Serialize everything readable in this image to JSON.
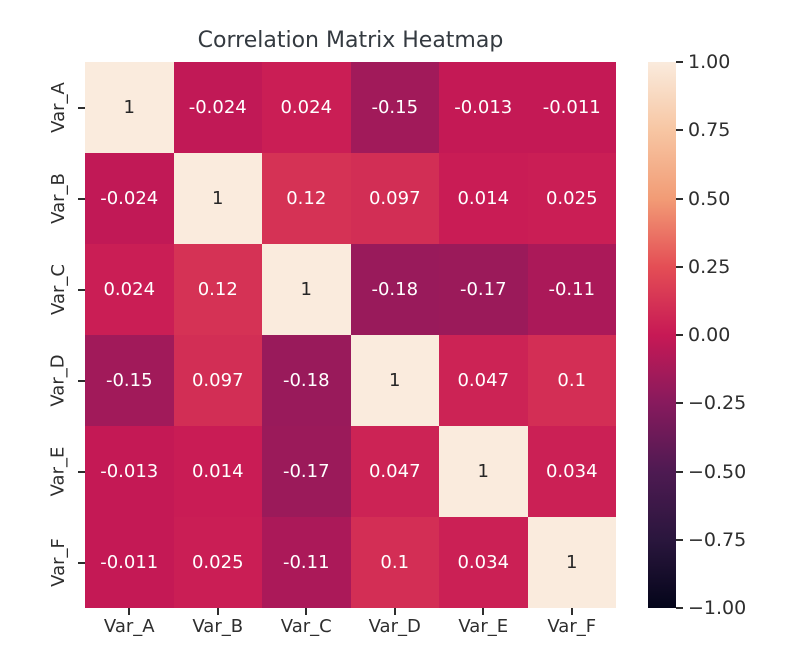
{
  "title": "Correlation Matrix Heatmap",
  "chart_data": {
    "type": "heatmap",
    "categories": [
      "Var_A",
      "Var_B",
      "Var_C",
      "Var_D",
      "Var_E",
      "Var_F"
    ],
    "matrix": [
      [
        1,
        -0.024,
        0.024,
        -0.15,
        -0.013,
        -0.011
      ],
      [
        -0.024,
        1,
        0.12,
        0.097,
        0.014,
        0.025
      ],
      [
        0.024,
        0.12,
        1,
        -0.18,
        -0.17,
        -0.11
      ],
      [
        -0.15,
        0.097,
        -0.18,
        1,
        0.047,
        0.1
      ],
      [
        -0.013,
        0.014,
        -0.17,
        0.047,
        1,
        0.034
      ],
      [
        -0.011,
        0.025,
        -0.11,
        0.1,
        0.034,
        1
      ]
    ],
    "cell_labels": [
      [
        "1",
        "-0.024",
        "0.024",
        "-0.15",
        "-0.013",
        "-0.011"
      ],
      [
        "-0.024",
        "1",
        "0.12",
        "0.097",
        "0.014",
        "0.025"
      ],
      [
        "0.024",
        "0.12",
        "1",
        "-0.18",
        "-0.17",
        "-0.11"
      ],
      [
        "-0.15",
        "0.097",
        "-0.18",
        "1",
        "0.047",
        "0.1"
      ],
      [
        "-0.013",
        "0.014",
        "-0.17",
        "0.047",
        "1",
        "0.034"
      ],
      [
        "-0.011",
        "0.025",
        "-0.11",
        "0.1",
        "0.034",
        "1"
      ]
    ],
    "vmin": -1,
    "vmax": 1,
    "colorbar_ticks": [
      {
        "value": 1.0,
        "label": "1.00"
      },
      {
        "value": 0.75,
        "label": "0.75"
      },
      {
        "value": 0.5,
        "label": "0.50"
      },
      {
        "value": 0.25,
        "label": "0.25"
      },
      {
        "value": 0.0,
        "label": "0.00"
      },
      {
        "value": -0.25,
        "label": "−0.25"
      },
      {
        "value": -0.5,
        "label": "−0.50"
      },
      {
        "value": -0.75,
        "label": "−0.75"
      },
      {
        "value": -1.0,
        "label": "−1.00"
      }
    ],
    "colormap": {
      "name": "rocket",
      "stops": [
        {
          "t": 0.0,
          "color": "#04051A"
        },
        {
          "t": 0.125,
          "color": "#2A163D"
        },
        {
          "t": 0.25,
          "color": "#4E1A52"
        },
        {
          "t": 0.375,
          "color": "#871A5D"
        },
        {
          "t": 0.5,
          "color": "#C71955"
        },
        {
          "t": 0.625,
          "color": "#E44E55"
        },
        {
          "t": 0.75,
          "color": "#F29C76"
        },
        {
          "t": 0.875,
          "color": "#F7C6A3"
        },
        {
          "t": 1.0,
          "color": "#FAEBDD"
        }
      ]
    },
    "legend_position": "right",
    "grid": false
  },
  "colors": {
    "background": "#ffffff",
    "title_text": "#343a40",
    "axis_text": "#2e2e2e",
    "annot_light": "#ffffff",
    "annot_dark": "#262626"
  }
}
